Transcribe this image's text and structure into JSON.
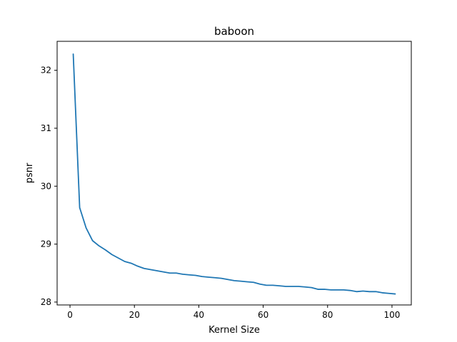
{
  "chart_data": {
    "type": "line",
    "title": "baboon",
    "xlabel": "Kernel Size",
    "ylabel": "psnr",
    "xlim": [
      -4,
      106
    ],
    "ylim": [
      27.95,
      32.5
    ],
    "xticks": [
      0,
      20,
      40,
      60,
      80,
      100
    ],
    "yticks": [
      28,
      29,
      30,
      31,
      32
    ],
    "grid": false,
    "line_color": "#1f77b4",
    "series": [
      {
        "x": [
          1,
          3,
          5,
          7,
          9,
          11,
          13,
          15,
          17,
          19,
          21,
          23,
          25,
          27,
          29,
          31,
          33,
          35,
          37,
          39,
          41,
          43,
          45,
          47,
          49,
          51,
          53,
          55,
          57,
          59,
          61,
          63,
          65,
          67,
          69,
          71,
          73,
          75,
          77,
          79,
          81,
          83,
          85,
          87,
          89,
          91,
          93,
          95,
          97,
          99,
          101
        ],
        "y": [
          32.28,
          29.63,
          29.28,
          29.06,
          28.97,
          28.9,
          28.82,
          28.76,
          28.7,
          28.67,
          28.62,
          28.58,
          28.56,
          28.54,
          28.52,
          28.5,
          28.5,
          28.48,
          28.47,
          28.46,
          28.44,
          28.43,
          28.42,
          28.41,
          28.39,
          28.37,
          28.36,
          28.35,
          28.34,
          28.31,
          28.29,
          28.29,
          28.28,
          28.27,
          28.27,
          28.27,
          28.26,
          28.25,
          28.22,
          28.22,
          28.21,
          28.21,
          28.21,
          28.2,
          28.18,
          28.19,
          28.18,
          28.18,
          28.16,
          28.15,
          28.14
        ]
      }
    ]
  }
}
